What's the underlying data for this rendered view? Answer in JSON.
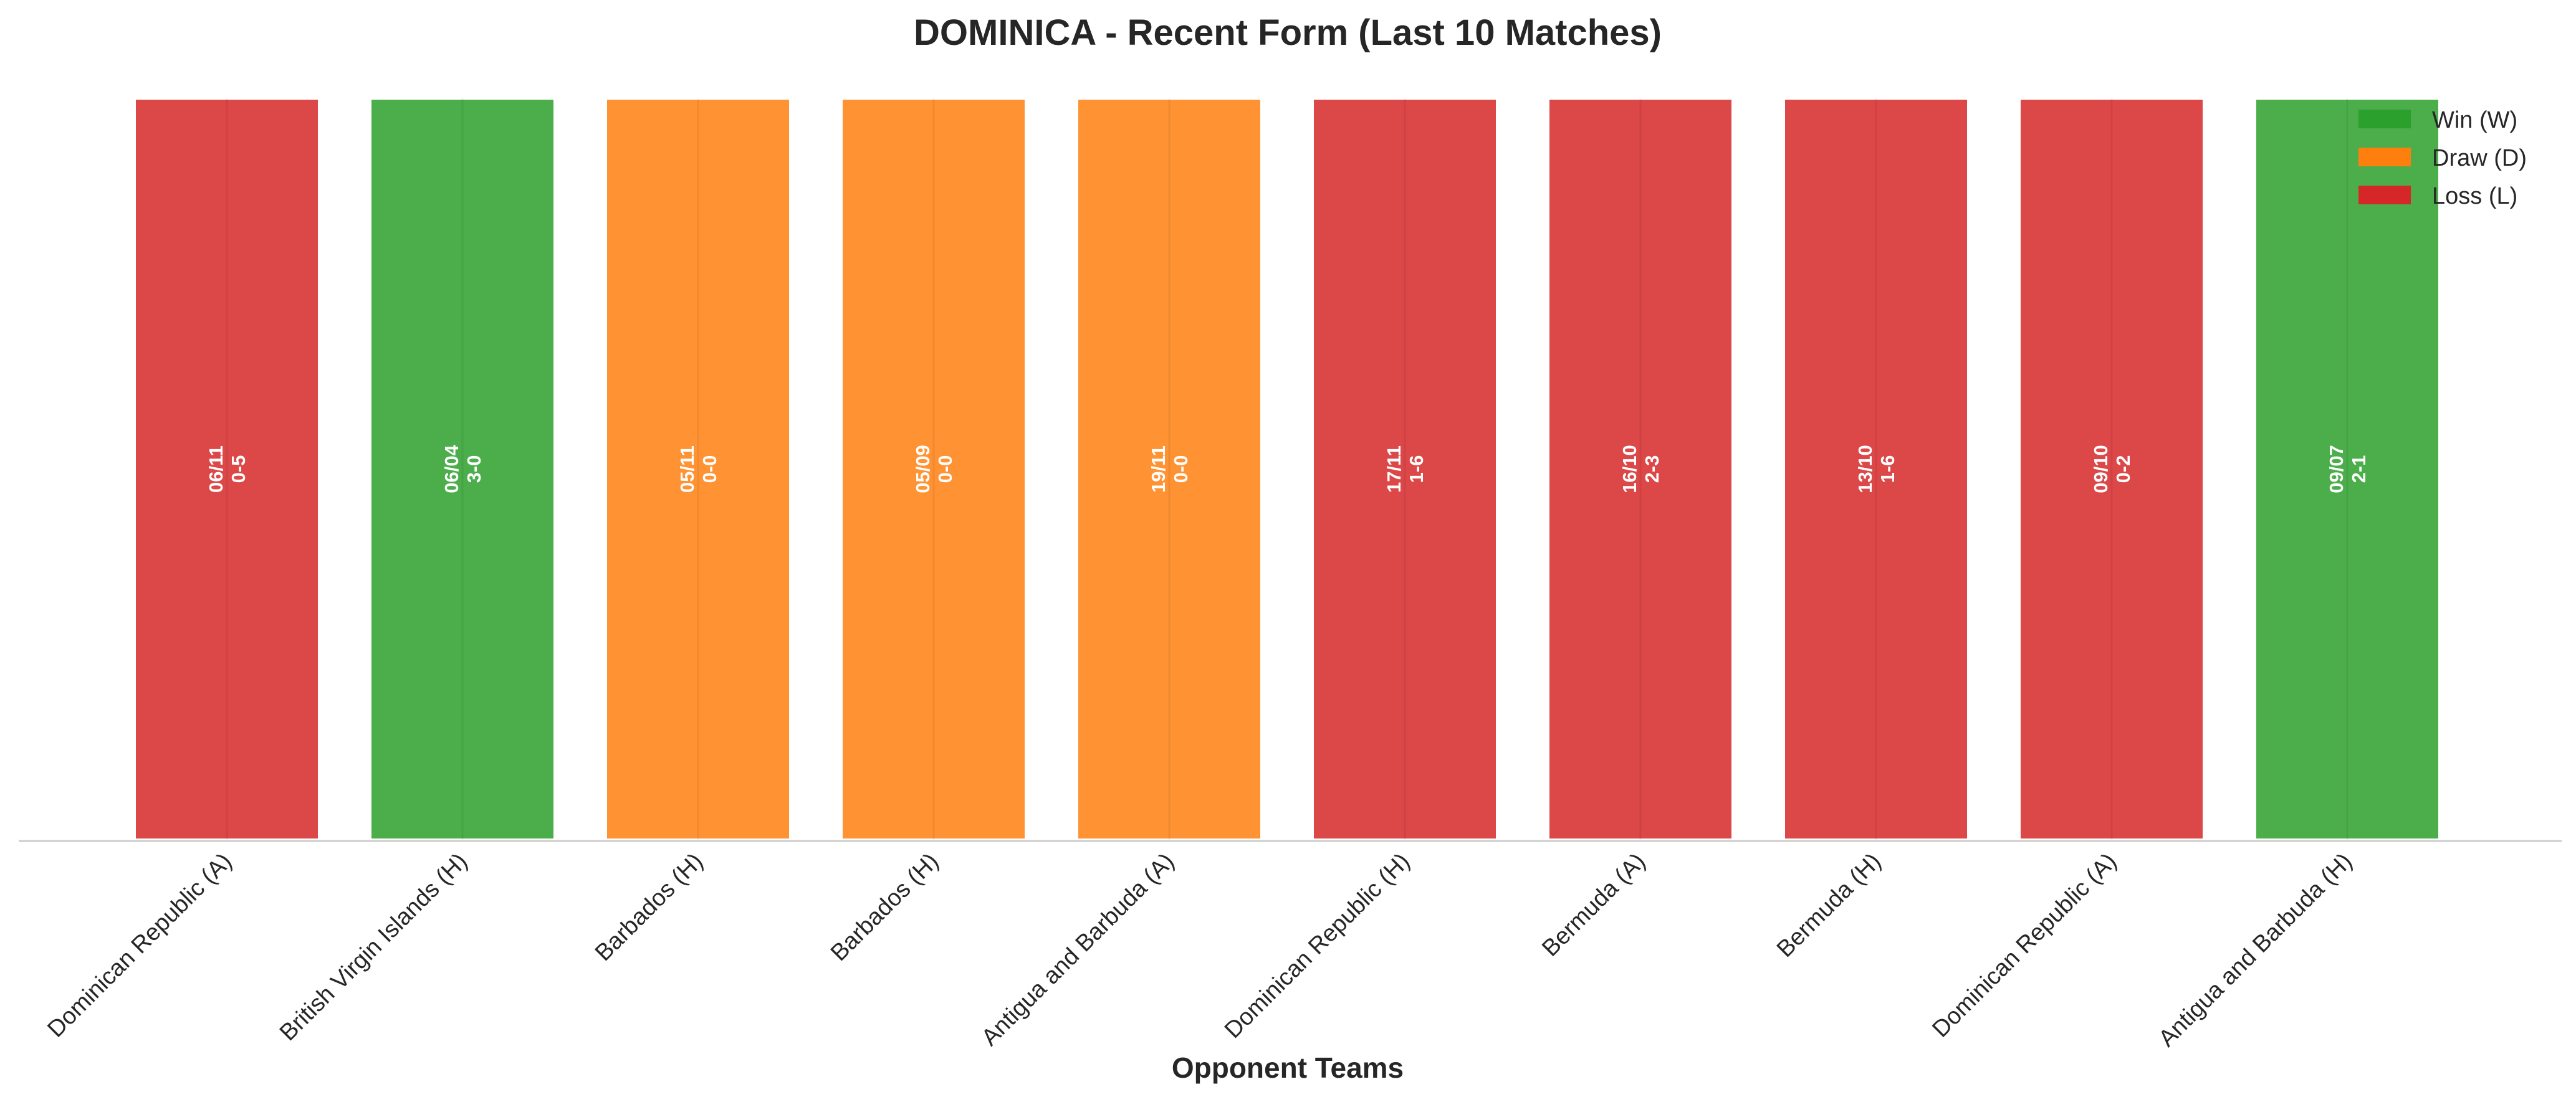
{
  "chart_data": {
    "type": "bar",
    "title": "DOMINICA - Recent Form (Last 10 Matches)",
    "xlabel": "Opponent Teams",
    "ylabel": "",
    "ylim": [
      0,
      1
    ],
    "grid": false,
    "legend_position": "top-right",
    "categories": [
      "Dominican Republic (A)",
      "British Virgin Islands (H)",
      "Barbados (H)",
      "Barbados (H)",
      "Antigua and Barbuda (A)",
      "Dominican Republic (H)",
      "Bermuda (A)",
      "Bermuda (H)",
      "Dominican Republic (A)",
      "Antigua and Barbuda (H)"
    ],
    "values": [
      1,
      1,
      1,
      1,
      1,
      1,
      1,
      1,
      1,
      1
    ],
    "results": [
      "L",
      "W",
      "D",
      "D",
      "D",
      "L",
      "L",
      "L",
      "L",
      "W"
    ],
    "dates": [
      "06/11",
      "06/04",
      "05/11",
      "05/09",
      "19/11",
      "17/11",
      "16/10",
      "13/10",
      "09/10",
      "09/07"
    ],
    "scores": [
      "0-5",
      "3-0",
      "0-0",
      "0-0",
      "0-0",
      "1-6",
      "2-3",
      "1-6",
      "0-2",
      "2-1"
    ],
    "legend": [
      {
        "key": "W",
        "label": "Win (W)",
        "color": "#2ca02c"
      },
      {
        "key": "D",
        "label": "Draw (D)",
        "color": "#ff7f0e"
      },
      {
        "key": "L",
        "label": "Loss (L)",
        "color": "#d62728"
      }
    ]
  }
}
